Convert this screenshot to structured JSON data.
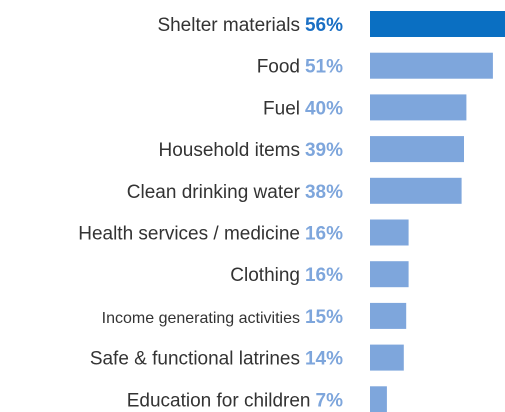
{
  "chart_data": {
    "type": "bar",
    "orientation": "horizontal",
    "title": "",
    "xlabel": "",
    "ylabel": "",
    "categories": [
      "Shelter materials",
      "Food",
      "Fuel",
      "Household items",
      "Clean drinking water",
      "Health services / medicine",
      "Clothing",
      "Income generating activities",
      "Safe & functional latrines",
      "Education for children"
    ],
    "values": [
      56,
      51,
      40,
      39,
      38,
      16,
      16,
      15,
      14,
      7
    ],
    "value_labels": [
      "56%",
      "51%",
      "40%",
      "39%",
      "38%",
      "16%",
      "16%",
      "15%",
      "14%",
      "7%"
    ],
    "highlight_index": 0,
    "colors": {
      "highlight_bar": "#0a6fc2",
      "bar": "#7ea6dc",
      "highlight_value": "#1a6fc4",
      "value": "#7ea6dc",
      "label": "#333333"
    },
    "xlim": [
      0,
      56
    ],
    "grid": false,
    "legend": "none"
  }
}
